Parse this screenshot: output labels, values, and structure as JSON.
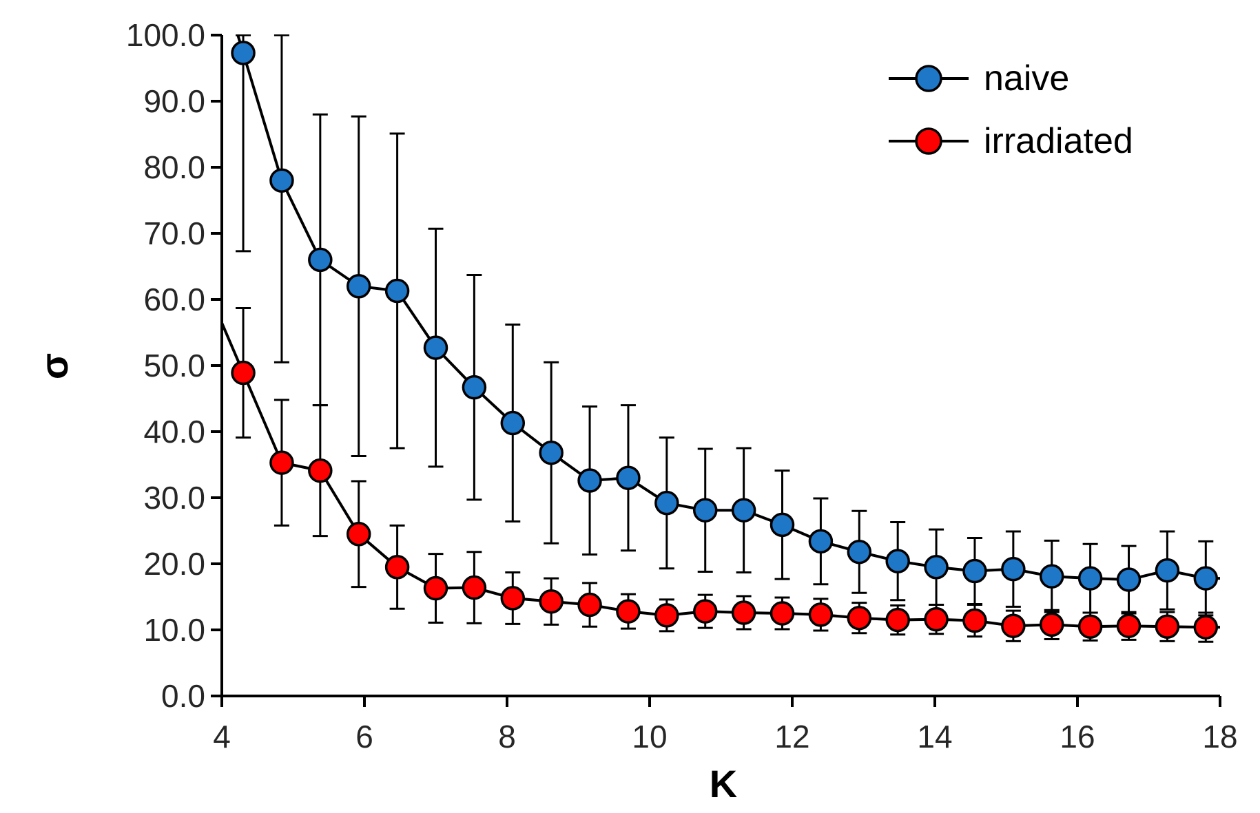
{
  "chart_data": {
    "type": "line",
    "title": "",
    "xlabel": "K",
    "ylabel": "σ",
    "xlim": [
      4,
      18
    ],
    "ylim": [
      0,
      100
    ],
    "x_ticks": [
      4,
      6,
      8,
      10,
      12,
      14,
      16,
      18
    ],
    "y_ticks": [
      0,
      10,
      20,
      30,
      40,
      50,
      60,
      70,
      80,
      90,
      100
    ],
    "y_tick_labels": [
      "0.0",
      "10.0",
      "20.0",
      "30.0",
      "40.0",
      "50.0",
      "60.0",
      "70.0",
      "80.0",
      "90.0",
      "100.0"
    ],
    "x_tick_labels": [
      "4",
      "6",
      "8",
      "10",
      "12",
      "14",
      "16",
      "18"
    ],
    "grid": false,
    "legend_position": "top-right",
    "x": [
      4.3,
      4.84,
      5.38,
      5.92,
      6.46,
      7.0,
      7.54,
      8.08,
      8.62,
      9.16,
      9.7,
      10.24,
      10.78,
      11.32,
      11.86,
      12.4,
      12.94,
      13.48,
      14.02,
      14.56,
      15.1,
      15.64,
      16.18,
      16.72,
      17.26,
      17.8
    ],
    "series": [
      {
        "name": "naive",
        "color": "#1f77c8",
        "values": [
          97.3,
          78.0,
          66.0,
          62.0,
          61.3,
          52.7,
          46.7,
          41.3,
          36.8,
          32.6,
          33.0,
          29.2,
          28.1,
          28.1,
          25.9,
          23.4,
          21.8,
          20.4,
          19.5,
          18.9,
          19.2,
          18.1,
          17.8,
          17.6,
          19.0,
          17.8
        ],
        "error": [
          30.0,
          27.5,
          22.0,
          25.7,
          23.8,
          18.0,
          17.0,
          14.9,
          13.7,
          11.2,
          11.0,
          9.9,
          9.3,
          9.4,
          8.2,
          6.5,
          6.2,
          5.9,
          5.7,
          5.0,
          5.7,
          5.4,
          5.2,
          5.1,
          5.9,
          5.6
        ]
      },
      {
        "name": "irradiated",
        "color": "#ff0000",
        "values": [
          48.9,
          35.3,
          34.1,
          24.5,
          19.5,
          16.3,
          16.4,
          14.8,
          14.3,
          13.8,
          12.8,
          12.2,
          12.8,
          12.6,
          12.5,
          12.3,
          11.8,
          11.5,
          11.6,
          11.4,
          10.6,
          10.8,
          10.5,
          10.6,
          10.5,
          10.4
        ],
        "error": [
          9.8,
          9.5,
          9.9,
          8.0,
          6.3,
          5.2,
          5.4,
          3.9,
          3.5,
          3.3,
          2.6,
          2.4,
          2.5,
          2.5,
          2.4,
          2.4,
          2.3,
          2.2,
          2.2,
          2.4,
          2.3,
          2.2,
          2.1,
          2.1,
          2.2,
          2.2
        ]
      }
    ]
  }
}
